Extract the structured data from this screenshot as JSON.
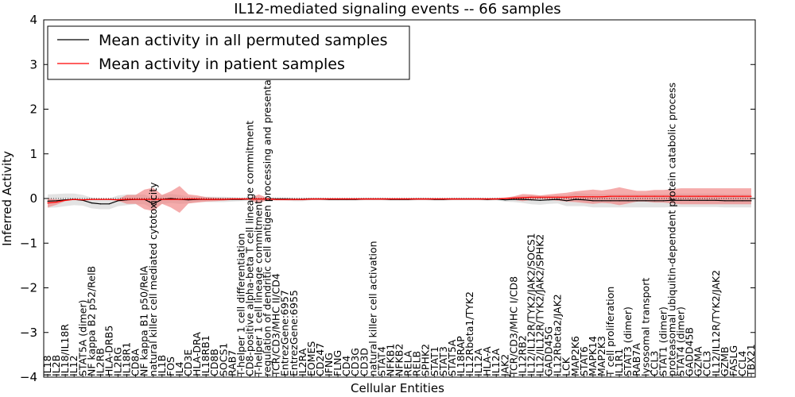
{
  "chart_data": {
    "type": "line",
    "title": "IL12-mediated signaling events -- 66 samples",
    "xlabel": "Cellular Entities",
    "ylabel": "Inferred Activity",
    "ylim": [
      -4,
      4
    ],
    "yticks": [
      -4,
      -3,
      -2,
      -1,
      0,
      1,
      2,
      3,
      4
    ],
    "legend_position": "top-left",
    "categories": [
      "IL18",
      "IL2B",
      "IL18/IL18R",
      "IL12",
      "STAT5A (dimer)",
      "NF kappa B2 p52/RelB",
      "IL2RB",
      "HLA-DRB5",
      "IL2RG",
      "IL18R1",
      "CD8A",
      "NF kappa B1 p50/RelA",
      "natural killer cell mediated cytotoxicity",
      "IL1B",
      "FOS",
      "IL4",
      "CD3E",
      "HLA-DRA",
      "IL18RB1",
      "CD8B",
      "SOCS1",
      "RAB7",
      "T-helper 1 cell differentiation",
      "CD8-positive alpha-beta T cell lineage commitment",
      "T-helper 1 cell lineage commitment",
      "regulation of dendritic cell antigen processing and presentation",
      "TCR/CD3/MHC II/CD4",
      "EntrezGene:6957",
      "EntrezGene:6955",
      "IL2RA",
      "EOMES",
      "CD247",
      "IFNG",
      "FLNG",
      "CD4",
      "CD3G",
      "CD3D",
      "natural killer cell activation",
      "STAT4",
      "NFKB1",
      "NFKB2",
      "RELA",
      "RELB",
      "SPHK2",
      "STAT1",
      "STAT3",
      "STAT5A",
      "IL18RAP",
      "IL12Rbeta1/TYK2",
      "IL12A",
      "HLA-A",
      "IL12A",
      "JAK2",
      "TCR/CD3/MHC I/CD8",
      "IL12RB2",
      "IL12/IL12R/TYK2/JAK2/SOCS1",
      "IL12/IL12R/TYK2/JAK2/SPHK2",
      "GADD45G",
      "IL12Rbeta2/JAK2",
      "LCK",
      "MAP2K6",
      "STAT6",
      "MAPK14",
      "MAP2K3",
      "T cell proliferation",
      "IL1R1",
      "STAT3 (dimer)",
      "RAB7A",
      "lysosomal transport",
      "CCL3",
      "STAT1 (dimer)",
      "proteasomal ubiquitin-dependent protein catabolic process",
      "STAT4 (dimer)",
      "GADD45B",
      "GZMA",
      "CCL3",
      "IL12/IL12R/TYK2/JAK2",
      "GZMB",
      "FASLG",
      "CCL4",
      "TBX21"
    ],
    "series": [
      {
        "name": "Mean activity in all permuted samples",
        "color": "#000000",
        "values": [
          -0.06,
          -0.05,
          -0.03,
          -0.02,
          -0.04,
          -0.1,
          -0.12,
          -0.12,
          -0.05,
          -0.03,
          -0.02,
          -0.02,
          -0.12,
          -0.02,
          0.0,
          -0.02,
          -0.03,
          -0.02,
          -0.02,
          -0.02,
          -0.02,
          -0.02,
          -0.02,
          -0.01,
          -0.01,
          -0.01,
          -0.01,
          -0.01,
          -0.02,
          -0.02,
          -0.01,
          -0.01,
          -0.02,
          -0.02,
          -0.02,
          -0.02,
          -0.01,
          -0.01,
          -0.01,
          -0.02,
          -0.02,
          -0.02,
          -0.01,
          -0.01,
          -0.02,
          -0.02,
          -0.01,
          -0.01,
          -0.01,
          -0.01,
          -0.02,
          -0.01,
          -0.03,
          -0.02,
          -0.02,
          -0.03,
          -0.04,
          -0.03,
          -0.02,
          -0.05,
          -0.02,
          -0.03,
          -0.05,
          -0.05,
          -0.05,
          -0.05,
          -0.05,
          -0.05,
          -0.05,
          -0.05,
          -0.05,
          -0.04,
          -0.04,
          -0.04,
          -0.04,
          -0.04,
          -0.04,
          -0.05,
          -0.05,
          -0.05,
          -0.05
        ],
        "band": [
          0.15,
          0.15,
          0.14,
          0.13,
          0.12,
          0.12,
          0.12,
          0.12,
          0.12,
          0.12,
          0.11,
          0.11,
          0.12,
          0.1,
          0.1,
          0.1,
          0.08,
          0.06,
          0.06,
          0.06,
          0.06,
          0.05,
          0.04,
          0.04,
          0.04,
          0.04,
          0.04,
          0.04,
          0.04,
          0.04,
          0.03,
          0.03,
          0.03,
          0.03,
          0.03,
          0.03,
          0.03,
          0.03,
          0.03,
          0.03,
          0.03,
          0.03,
          0.03,
          0.03,
          0.03,
          0.03,
          0.03,
          0.03,
          0.03,
          0.03,
          0.03,
          0.03,
          0.04,
          0.06,
          0.08,
          0.1,
          0.1,
          0.09,
          0.09,
          0.12,
          0.15,
          0.14,
          0.15,
          0.15,
          0.15,
          0.15,
          0.15,
          0.15,
          0.15,
          0.15,
          0.15,
          0.15,
          0.15,
          0.15,
          0.15,
          0.15,
          0.15,
          0.15,
          0.15,
          0.15,
          0.15
        ]
      },
      {
        "name": "Mean activity in patient samples",
        "color": "#ff0000",
        "values": [
          -0.1,
          -0.08,
          -0.04,
          -0.02,
          -0.03,
          -0.02,
          -0.02,
          -0.02,
          -0.03,
          -0.02,
          -0.02,
          -0.02,
          -0.02,
          -0.02,
          -0.02,
          -0.02,
          -0.01,
          -0.01,
          -0.02,
          -0.02,
          -0.02,
          -0.01,
          -0.01,
          -0.01,
          -0.01,
          -0.01,
          -0.02,
          -0.02,
          -0.02,
          -0.02,
          -0.01,
          -0.01,
          -0.01,
          -0.01,
          -0.01,
          -0.01,
          -0.01,
          -0.01,
          -0.01,
          -0.01,
          -0.01,
          -0.01,
          -0.01,
          -0.01,
          -0.01,
          -0.01,
          -0.01,
          -0.01,
          -0.01,
          -0.01,
          -0.01,
          -0.01,
          0.0,
          0.01,
          0.02,
          0.03,
          0.03,
          0.03,
          0.03,
          0.03,
          0.04,
          0.04,
          0.04,
          0.04,
          0.05,
          0.05,
          0.05,
          0.05,
          0.05,
          0.05,
          0.05,
          0.05,
          0.05,
          0.05,
          0.05,
          0.05,
          0.05,
          0.05,
          0.05,
          0.05,
          0.05
        ],
        "band": [
          0.1,
          0.06,
          0.02,
          0.01,
          0.02,
          0.01,
          0.01,
          0.01,
          0.02,
          0.1,
          0.1,
          0.22,
          0.26,
          0.1,
          0.18,
          0.3,
          0.1,
          0.08,
          0.05,
          0.04,
          0.03,
          0.02,
          0.02,
          0.02,
          0.1,
          0.02,
          0.02,
          0.02,
          0.02,
          0.02,
          0.02,
          0.02,
          0.02,
          0.02,
          0.02,
          0.02,
          0.02,
          0.02,
          0.02,
          0.02,
          0.02,
          0.02,
          0.02,
          0.02,
          0.02,
          0.02,
          0.02,
          0.02,
          0.02,
          0.02,
          0.02,
          0.02,
          0.02,
          0.04,
          0.08,
          0.06,
          0.04,
          0.06,
          0.08,
          0.1,
          0.12,
          0.14,
          0.16,
          0.14,
          0.16,
          0.2,
          0.16,
          0.12,
          0.12,
          0.14,
          0.14,
          0.16,
          0.18,
          0.18,
          0.18,
          0.18,
          0.18,
          0.18,
          0.18,
          0.18,
          0.18
        ]
      }
    ],
    "zero_line": 0
  }
}
